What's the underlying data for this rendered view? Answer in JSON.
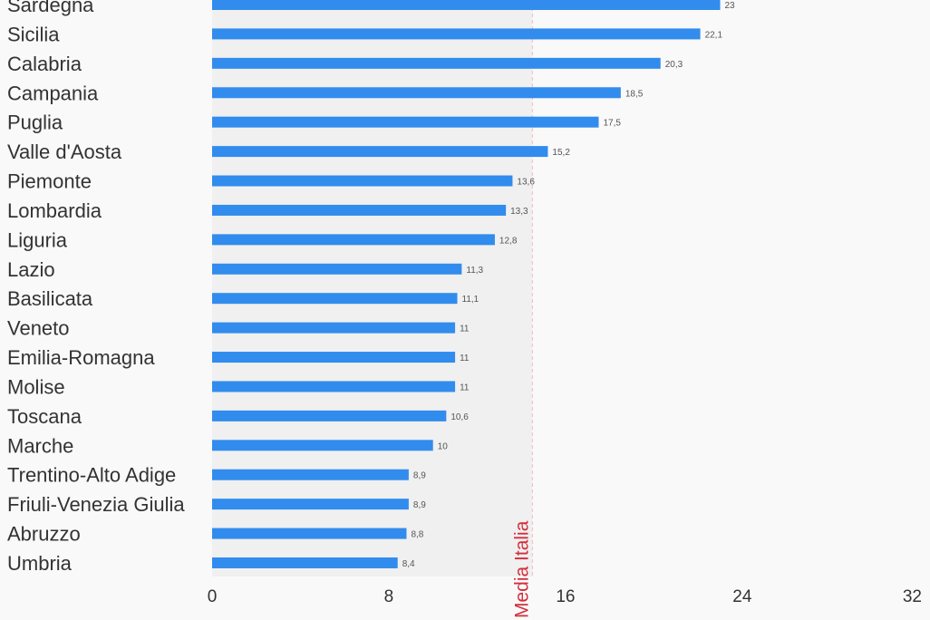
{
  "chart_data": {
    "type": "bar",
    "orientation": "horizontal",
    "title": "",
    "xlabel": "",
    "ylabel": "",
    "xlim": [
      0,
      32
    ],
    "x_ticks": [
      0,
      8,
      16,
      24,
      32
    ],
    "x_tick_labels": [
      "0",
      "8",
      "16",
      "24",
      "32"
    ],
    "grid": false,
    "legend": "none",
    "bar_color": "#318ced",
    "categories": [
      "Sardegna",
      "Sicilia",
      "Calabria",
      "Campania",
      "Puglia",
      "Valle d'Aosta",
      "Piemonte",
      "Lombardia",
      "Liguria",
      "Lazio",
      "Basilicata",
      "Veneto",
      "Emilia-Romagna",
      "Molise",
      "Toscana",
      "Marche",
      "Trentino-Alto Adige",
      "Friuli-Venezia Giulia",
      "Abruzzo",
      "Umbria"
    ],
    "values": [
      23,
      22.1,
      20.3,
      18.5,
      17.5,
      15.2,
      13.6,
      13.3,
      12.8,
      11.3,
      11.1,
      11,
      11,
      11,
      10.6,
      10,
      8.9,
      8.9,
      8.8,
      8.4
    ],
    "value_labels": [
      "23",
      "22,1",
      "20,3",
      "18,5",
      "17,5",
      "15,2",
      "13,6",
      "13,3",
      "12,8",
      "11,3",
      "11,1",
      "11",
      "11",
      "11",
      "10,6",
      "10",
      "8,9",
      "8,9",
      "8,8",
      "8,4"
    ],
    "reference_line": {
      "label": "Media Italia",
      "value": 14.5,
      "color": "#d32f3c",
      "style": "dashed",
      "shaded_below": true,
      "shade_color": "#f0f0f0"
    }
  }
}
